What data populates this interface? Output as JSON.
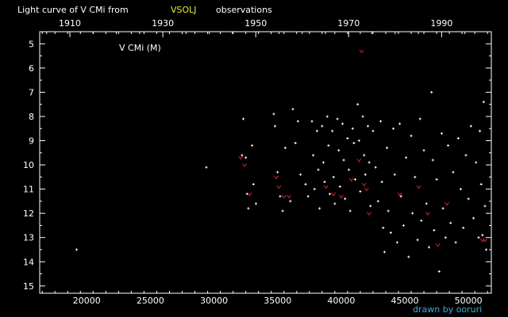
{
  "chart_data": {
    "type": "scatter",
    "title_prefix": "Light curve of V CMi from",
    "title_source": "VSOLJ",
    "title_suffix": "observations",
    "series_label": "V CMi (M)",
    "credit": "drawn by ooruri",
    "x_axis": {
      "label": "",
      "quantity": "Julian Day - 2400000",
      "range": [
        16300,
        51800
      ],
      "ticks": [
        20000,
        25000,
        30000,
        35000,
        40000,
        45000,
        50000
      ],
      "tick_labels": [
        "20000",
        "25000",
        "30000",
        "35000",
        "40000",
        "45000",
        "50000"
      ]
    },
    "top_axis": {
      "label": "",
      "quantity": "year",
      "ticks": [
        1910,
        1930,
        1950,
        1970,
        1990
      ],
      "tick_labels": [
        "1910",
        "1930",
        "1950",
        "1970",
        "1990"
      ]
    },
    "y_axis": {
      "label": "",
      "quantity": "magnitude",
      "inverted": true,
      "range": [
        4.5,
        15.3
      ],
      "ticks": [
        5,
        6,
        7,
        8,
        9,
        10,
        11,
        12,
        13,
        14,
        15
      ],
      "tick_labels": [
        "5",
        "6",
        "7",
        "8",
        "9",
        "10",
        "11",
        "12",
        "13",
        "14",
        "15"
      ]
    },
    "grid": false,
    "colors": {
      "background": "#000000",
      "axes": "#ffffff",
      "text": "#ffffff",
      "highlight": "#e8e840",
      "credit": "#38b0d8",
      "observation": "#ffffff",
      "fainter_than": "#e02020"
    },
    "series": [
      {
        "kind": "visual-estimate",
        "color": "#ffffff",
        "points": [
          [
            19200,
            13.5
          ],
          [
            29400,
            10.1
          ],
          [
            32200,
            9.6
          ],
          [
            32300,
            8.1
          ],
          [
            32500,
            9.7
          ],
          [
            32600,
            11.2
          ],
          [
            32700,
            11.8
          ],
          [
            33000,
            9.2
          ],
          [
            33100,
            10.8
          ],
          [
            33300,
            11.6
          ],
          [
            34700,
            7.9
          ],
          [
            34800,
            8.4
          ],
          [
            35000,
            10.3
          ],
          [
            35200,
            11.3
          ],
          [
            35400,
            11.9
          ],
          [
            35600,
            9.3
          ],
          [
            36000,
            11.5
          ],
          [
            36200,
            7.7
          ],
          [
            36400,
            9.1
          ],
          [
            36600,
            8.2
          ],
          [
            36800,
            10.4
          ],
          [
            37200,
            10.8
          ],
          [
            37400,
            11.3
          ],
          [
            37700,
            8.2
          ],
          [
            37800,
            9.6
          ],
          [
            37900,
            11.0
          ],
          [
            38100,
            8.6
          ],
          [
            38200,
            10.2
          ],
          [
            38300,
            11.8
          ],
          [
            38500,
            8.4
          ],
          [
            38600,
            9.9
          ],
          [
            38700,
            10.7
          ],
          [
            38900,
            8.0
          ],
          [
            39000,
            9.2
          ],
          [
            39100,
            11.2
          ],
          [
            39300,
            8.6
          ],
          [
            39400,
            10.5
          ],
          [
            39500,
            11.6
          ],
          [
            39700,
            8.1
          ],
          [
            39800,
            9.4
          ],
          [
            39900,
            10.9
          ],
          [
            40100,
            8.3
          ],
          [
            40200,
            9.8
          ],
          [
            40300,
            11.4
          ],
          [
            40500,
            8.9
          ],
          [
            40600,
            10.2
          ],
          [
            40700,
            11.9
          ],
          [
            40900,
            8.5
          ],
          [
            41000,
            9.1
          ],
          [
            41100,
            10.6
          ],
          [
            41300,
            7.5
          ],
          [
            41400,
            9.0
          ],
          [
            41500,
            11.1
          ],
          [
            41700,
            8.0
          ],
          [
            41800,
            9.6
          ],
          [
            41900,
            10.4
          ],
          [
            42100,
            8.4
          ],
          [
            42200,
            9.9
          ],
          [
            42300,
            11.7
          ],
          [
            42500,
            8.6
          ],
          [
            42700,
            10.1
          ],
          [
            42900,
            11.5
          ],
          [
            43100,
            8.2
          ],
          [
            43200,
            10.7
          ],
          [
            43300,
            12.6
          ],
          [
            43400,
            13.6
          ],
          [
            43600,
            9.3
          ],
          [
            43700,
            11.9
          ],
          [
            43900,
            12.8
          ],
          [
            44100,
            8.5
          ],
          [
            44200,
            10.4
          ],
          [
            44400,
            13.2
          ],
          [
            44600,
            8.3
          ],
          [
            44700,
            11.3
          ],
          [
            44900,
            12.5
          ],
          [
            45100,
            9.7
          ],
          [
            45300,
            13.8
          ],
          [
            45500,
            8.8
          ],
          [
            45600,
            12.0
          ],
          [
            45800,
            10.5
          ],
          [
            46000,
            13.1
          ],
          [
            46200,
            8.1
          ],
          [
            46300,
            12.3
          ],
          [
            46500,
            9.4
          ],
          [
            46700,
            11.6
          ],
          [
            46900,
            13.4
          ],
          [
            47100,
            7.0
          ],
          [
            47200,
            9.8
          ],
          [
            47300,
            12.7
          ],
          [
            47500,
            10.6
          ],
          [
            47700,
            14.4
          ],
          [
            47900,
            8.7
          ],
          [
            48000,
            11.8
          ],
          [
            48200,
            13.0
          ],
          [
            48400,
            9.2
          ],
          [
            48600,
            12.4
          ],
          [
            48800,
            10.3
          ],
          [
            49000,
            13.2
          ],
          [
            49200,
            8.9
          ],
          [
            49400,
            11.0
          ],
          [
            49600,
            12.6
          ],
          [
            49800,
            9.6
          ],
          [
            50000,
            11.4
          ],
          [
            50200,
            8.4
          ],
          [
            50400,
            12.2
          ],
          [
            50600,
            9.9
          ],
          [
            50800,
            13.0
          ],
          [
            50900,
            8.6
          ],
          [
            51000,
            10.8
          ],
          [
            51100,
            12.9
          ],
          [
            51200,
            7.4
          ],
          [
            51300,
            11.7
          ],
          [
            51400,
            13.5
          ]
        ]
      },
      {
        "kind": "fainter-than",
        "color": "#e02020",
        "points": [
          [
            32100,
            9.7
          ],
          [
            32400,
            10.0
          ],
          [
            32800,
            11.2
          ],
          [
            34900,
            10.5
          ],
          [
            35100,
            10.9
          ],
          [
            35500,
            11.3
          ],
          [
            35900,
            11.3
          ],
          [
            38800,
            10.9
          ],
          [
            39400,
            11.2
          ],
          [
            40000,
            11.3
          ],
          [
            40800,
            10.6
          ],
          [
            41400,
            9.8
          ],
          [
            41600,
            5.3
          ],
          [
            41800,
            10.8
          ],
          [
            42000,
            11.0
          ],
          [
            42200,
            12.0
          ],
          [
            44600,
            11.2
          ],
          [
            46100,
            10.9
          ],
          [
            46800,
            12.0
          ],
          [
            47600,
            13.3
          ],
          [
            48300,
            11.6
          ],
          [
            51100,
            13.1
          ],
          [
            51300,
            13.1
          ]
        ]
      }
    ]
  }
}
